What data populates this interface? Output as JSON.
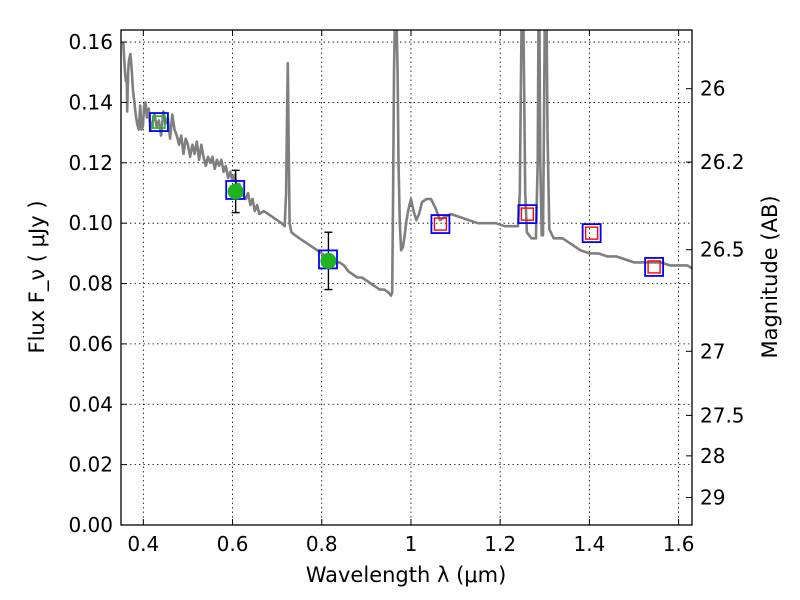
{
  "chart_data": {
    "type": "line",
    "xlabel": "Wavelength  λ (μm)",
    "ylabel": "Flux  F_ν  ( μJy )",
    "y2label": "Magnitude (AB)",
    "xlim": [
      0.35,
      1.63
    ],
    "ylim": [
      0.0,
      0.164
    ],
    "grid": true,
    "x_ticks": [
      {
        "value": 0.4,
        "label": "0.4"
      },
      {
        "value": 0.6,
        "label": "0.6"
      },
      {
        "value": 0.8,
        "label": "0.8"
      },
      {
        "value": 1.0,
        "label": "1"
      },
      {
        "value": 1.2,
        "label": "1.2"
      },
      {
        "value": 1.4,
        "label": "1.4"
      },
      {
        "value": 1.6,
        "label": "1.6"
      }
    ],
    "y_ticks": [
      {
        "value": 0.0,
        "label": "0.00"
      },
      {
        "value": 0.02,
        "label": "0.02"
      },
      {
        "value": 0.04,
        "label": "0.04"
      },
      {
        "value": 0.06,
        "label": "0.06"
      },
      {
        "value": 0.08,
        "label": "0.08"
      },
      {
        "value": 0.1,
        "label": "0.10"
      },
      {
        "value": 0.12,
        "label": "0.12"
      },
      {
        "value": 0.14,
        "label": "0.14"
      },
      {
        "value": 0.16,
        "label": "0.16"
      }
    ],
    "y2_ticks": [
      {
        "mag": 26,
        "label": "26"
      },
      {
        "mag": 26.2,
        "label": "26.2"
      },
      {
        "mag": 26.5,
        "label": "26.5"
      },
      {
        "mag": 27,
        "label": "27"
      },
      {
        "mag": 27.5,
        "label": "27.5"
      },
      {
        "mag": 28,
        "label": "28"
      },
      {
        "mag": 29,
        "label": "29"
      }
    ],
    "series": [
      {
        "type": "line",
        "color": "#7f7f7f",
        "points": [
          [
            0.355,
            0.16
          ],
          [
            0.357,
            0.155
          ],
          [
            0.359,
            0.15
          ],
          [
            0.361,
            0.147
          ],
          [
            0.363,
            0.148
          ],
          [
            0.364,
            0.137
          ],
          [
            0.366,
            0.15
          ],
          [
            0.368,
            0.154
          ],
          [
            0.371,
            0.156
          ],
          [
            0.374,
            0.151
          ],
          [
            0.377,
            0.144
          ],
          [
            0.38,
            0.14
          ],
          [
            0.383,
            0.136
          ],
          [
            0.386,
            0.133
          ],
          [
            0.39,
            0.131
          ],
          [
            0.393,
            0.139
          ],
          [
            0.396,
            0.131
          ],
          [
            0.399,
            0.132
          ],
          [
            0.402,
            0.139
          ],
          [
            0.405,
            0.14
          ],
          [
            0.408,
            0.135
          ],
          [
            0.412,
            0.138
          ],
          [
            0.416,
            0.131
          ],
          [
            0.42,
            0.133
          ],
          [
            0.425,
            0.136
          ],
          [
            0.43,
            0.132
          ],
          [
            0.435,
            0.134
          ],
          [
            0.44,
            0.129
          ],
          [
            0.445,
            0.137
          ],
          [
            0.45,
            0.133
          ],
          [
            0.455,
            0.135
          ],
          [
            0.46,
            0.128
          ],
          [
            0.465,
            0.136
          ],
          [
            0.47,
            0.131
          ],
          [
            0.475,
            0.129
          ],
          [
            0.48,
            0.126
          ],
          [
            0.485,
            0.129
          ],
          [
            0.49,
            0.123
          ],
          [
            0.495,
            0.128
          ],
          [
            0.5,
            0.126
          ],
          [
            0.505,
            0.122
          ],
          [
            0.51,
            0.126
          ],
          [
            0.515,
            0.123
          ],
          [
            0.52,
            0.127
          ],
          [
            0.525,
            0.121
          ],
          [
            0.53,
            0.126
          ],
          [
            0.535,
            0.122
          ],
          [
            0.54,
            0.119
          ],
          [
            0.545,
            0.122
          ],
          [
            0.55,
            0.12
          ],
          [
            0.555,
            0.122
          ],
          [
            0.56,
            0.118
          ],
          [
            0.565,
            0.121
          ],
          [
            0.57,
            0.119
          ],
          [
            0.575,
            0.121
          ],
          [
            0.58,
            0.117
          ],
          [
            0.585,
            0.119
          ],
          [
            0.59,
            0.115
          ],
          [
            0.595,
            0.117
          ],
          [
            0.6,
            0.114
          ],
          [
            0.605,
            0.116
          ],
          [
            0.61,
            0.112
          ],
          [
            0.615,
            0.113
          ],
          [
            0.62,
            0.111
          ],
          [
            0.625,
            0.109
          ],
          [
            0.63,
            0.108
          ],
          [
            0.635,
            0.11
          ],
          [
            0.64,
            0.106
          ],
          [
            0.645,
            0.108
          ],
          [
            0.65,
            0.104
          ],
          [
            0.655,
            0.106
          ],
          [
            0.66,
            0.103
          ],
          [
            0.67,
            0.104
          ],
          [
            0.68,
            0.103
          ],
          [
            0.69,
            0.102
          ],
          [
            0.7,
            0.101
          ],
          [
            0.71,
            0.1
          ],
          [
            0.717,
            0.099
          ],
          [
            0.72,
            0.11
          ],
          [
            0.722,
            0.132
          ],
          [
            0.724,
            0.153
          ],
          [
            0.726,
            0.125
          ],
          [
            0.728,
            0.1
          ],
          [
            0.732,
            0.097
          ],
          [
            0.74,
            0.096
          ],
          [
            0.75,
            0.095
          ],
          [
            0.76,
            0.094
          ],
          [
            0.77,
            0.093
          ],
          [
            0.78,
            0.092
          ],
          [
            0.79,
            0.091
          ],
          [
            0.8,
            0.09
          ],
          [
            0.81,
            0.089
          ],
          [
            0.82,
            0.088
          ],
          [
            0.83,
            0.087
          ],
          [
            0.84,
            0.087
          ],
          [
            0.85,
            0.086
          ],
          [
            0.86,
            0.084
          ],
          [
            0.87,
            0.083
          ],
          [
            0.88,
            0.082
          ],
          [
            0.89,
            0.082
          ],
          [
            0.9,
            0.081
          ],
          [
            0.91,
            0.08
          ],
          [
            0.92,
            0.079
          ],
          [
            0.93,
            0.078
          ],
          [
            0.94,
            0.078
          ],
          [
            0.95,
            0.077
          ],
          [
            0.955,
            0.076
          ],
          [
            0.958,
            0.077
          ],
          [
            0.96,
            0.11
          ],
          [
            0.962,
            0.15
          ],
          [
            0.964,
            0.167
          ],
          [
            0.966,
            0.16
          ],
          [
            0.968,
            0.165
          ],
          [
            0.97,
            0.15
          ],
          [
            0.972,
            0.12
          ],
          [
            0.975,
            0.1
          ],
          [
            0.978,
            0.091
          ],
          [
            0.982,
            0.092
          ],
          [
            0.986,
            0.096
          ],
          [
            0.99,
            0.101
          ],
          [
            0.995,
            0.105
          ],
          [
            1.0,
            0.108
          ],
          [
            1.006,
            0.104
          ],
          [
            1.012,
            0.101
          ],
          [
            1.018,
            0.103
          ],
          [
            1.025,
            0.107
          ],
          [
            1.035,
            0.108
          ],
          [
            1.045,
            0.108
          ],
          [
            1.055,
            0.105
          ],
          [
            1.065,
            0.101
          ],
          [
            1.075,
            0.102
          ],
          [
            1.09,
            0.103
          ],
          [
            1.11,
            0.102
          ],
          [
            1.13,
            0.101
          ],
          [
            1.15,
            0.1
          ],
          [
            1.17,
            0.1
          ],
          [
            1.19,
            0.1
          ],
          [
            1.21,
            0.099
          ],
          [
            1.23,
            0.099
          ],
          [
            1.24,
            0.099
          ],
          [
            1.244,
            0.11
          ],
          [
            1.246,
            0.14
          ],
          [
            1.248,
            0.167
          ],
          [
            1.252,
            0.167
          ],
          [
            1.254,
            0.14
          ],
          [
            1.256,
            0.11
          ],
          [
            1.26,
            0.097
          ],
          [
            1.27,
            0.095
          ],
          [
            1.28,
            0.095
          ],
          [
            1.284,
            0.12
          ],
          [
            1.286,
            0.167
          ],
          [
            1.288,
            0.167
          ],
          [
            1.29,
            0.12
          ],
          [
            1.293,
            0.096
          ],
          [
            1.296,
            0.096
          ],
          [
            1.298,
            0.13
          ],
          [
            1.3,
            0.167
          ],
          [
            1.304,
            0.167
          ],
          [
            1.306,
            0.13
          ],
          [
            1.31,
            0.098
          ],
          [
            1.32,
            0.095
          ],
          [
            1.34,
            0.095
          ],
          [
            1.36,
            0.093
          ],
          [
            1.38,
            0.091
          ],
          [
            1.4,
            0.09
          ],
          [
            1.42,
            0.09
          ],
          [
            1.44,
            0.089
          ],
          [
            1.46,
            0.089
          ],
          [
            1.48,
            0.088
          ],
          [
            1.5,
            0.087
          ],
          [
            1.52,
            0.087
          ],
          [
            1.54,
            0.087
          ],
          [
            1.56,
            0.087
          ],
          [
            1.58,
            0.086
          ],
          [
            1.6,
            0.086
          ],
          [
            1.62,
            0.086
          ],
          [
            1.63,
            0.085
          ]
        ]
      }
    ],
    "photometry_green": [
      {
        "x": 0.607,
        "y": 0.1105,
        "yerr": 0.007
      },
      {
        "x": 0.815,
        "y": 0.0875,
        "yerr": 0.0095
      }
    ],
    "model_blue_squares": [
      {
        "x": 0.435,
        "y": 0.1335
      },
      {
        "x": 0.606,
        "y": 0.111
      },
      {
        "x": 0.814,
        "y": 0.088
      },
      {
        "x": 1.066,
        "y": 0.0997
      },
      {
        "x": 1.261,
        "y": 0.103
      },
      {
        "x": 1.405,
        "y": 0.0967
      },
      {
        "x": 1.545,
        "y": 0.0855
      }
    ],
    "model_red_squares": [
      {
        "x": 1.066,
        "y": 0.0997
      },
      {
        "x": 1.261,
        "y": 0.103
      },
      {
        "x": 1.405,
        "y": 0.0967
      },
      {
        "x": 1.545,
        "y": 0.0855
      }
    ],
    "model_green_squares": [
      {
        "x": 0.435,
        "y": 0.1335
      }
    ],
    "colors": {
      "spectrum": "#7f7f7f",
      "green": "#1eb41e",
      "blue": "#0000ff",
      "red": "#ff0000",
      "errorbar": "#000000"
    }
  }
}
